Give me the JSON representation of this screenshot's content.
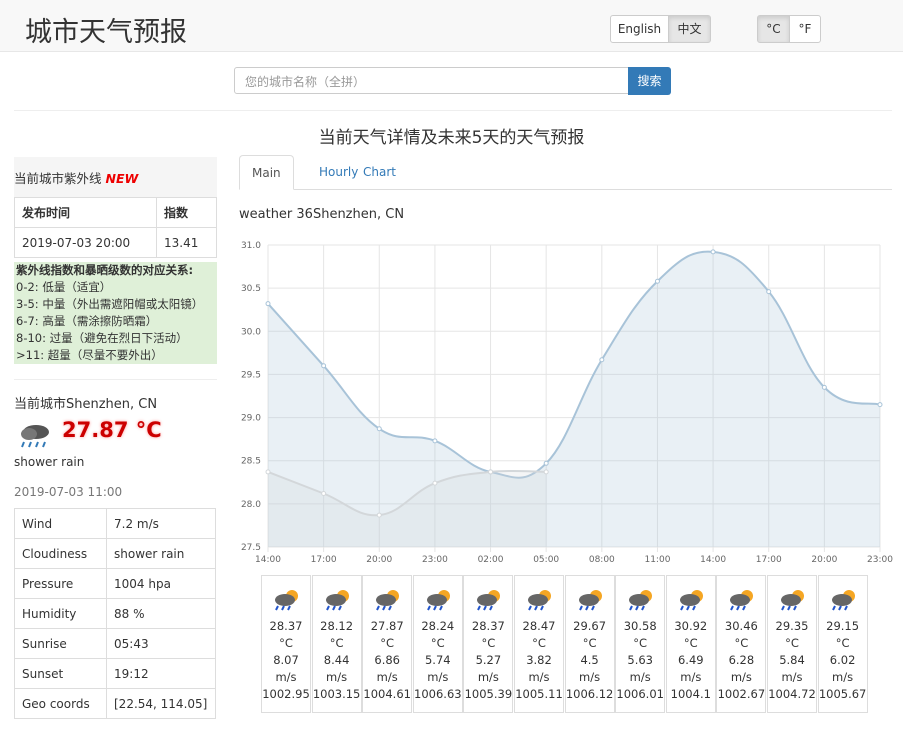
{
  "header": {
    "title": "城市天气预报",
    "lang": [
      "English",
      "中文"
    ],
    "units": [
      "°C",
      "°F"
    ]
  },
  "search": {
    "placeholder": "您的城市名称（全拼）",
    "button": "搜索"
  },
  "heading": "当前天气详情及未来5天的天气预报",
  "uv": {
    "title": "当前城市紫外线",
    "badge": "NEW",
    "columns": [
      "发布时间",
      "指数"
    ],
    "row": [
      "2019-07-03 20:00",
      "13.41"
    ],
    "legend_title": "紫外线指数和暴晒级数的对应关系:",
    "legend": [
      "0-2: 低量（适宜）",
      "3-5: 中量（外出需遮阳帽或太阳镜）",
      "6-7: 高量（需涂擦防晒霜）",
      "8-10: 过量（避免在烈日下活动）",
      ">11: 超量（尽量不要外出）"
    ]
  },
  "current": {
    "city": "当前城市Shenzhen, CN",
    "temp": 27.87,
    "temp_unit": "°C",
    "desc": "shower rain",
    "time": "2019-07-03 11:00",
    "stats": [
      [
        "Wind",
        "7.2 m/s"
      ],
      [
        "Cloudiness",
        "shower rain"
      ],
      [
        "Pressure",
        "1004 hpa"
      ],
      [
        "Humidity",
        "88 %"
      ],
      [
        "Sunrise",
        "05:43"
      ],
      [
        "Sunset",
        "19:12"
      ],
      [
        "Geo coords",
        "[22.54, 114.05]"
      ]
    ]
  },
  "tabs": [
    "Main",
    "Hourly",
    "Chart"
  ],
  "weather_title": "weather 36Shenzhen, CN",
  "chart_data": {
    "type": "line",
    "categories": [
      "14:00",
      "17:00",
      "20:00",
      "23:00",
      "02:00",
      "05:00",
      "08:00",
      "11:00",
      "14:00",
      "17:00",
      "20:00",
      "23:00"
    ],
    "series": [
      {
        "color": "#a8c3d8",
        "values": [
          30.32,
          29.6,
          28.87,
          28.73,
          28.37,
          28.47,
          29.67,
          30.58,
          30.92,
          30.46,
          29.35,
          29.15
        ]
      },
      {
        "color": "#d3d7da",
        "values": [
          28.37,
          28.12,
          27.87,
          28.24,
          28.37,
          28.37,
          null,
          null,
          null,
          null,
          null,
          null
        ]
      }
    ],
    "ylim": [
      27.5,
      31.0
    ],
    "yticks": [
      27.5,
      {
        "value": 28,
        "label": "28.0"
      },
      28.5,
      {
        "value": 29,
        "label": "29.0"
      },
      29.5,
      {
        "value": 30,
        "label": "30.0"
      },
      30.5,
      {
        "value": 31,
        "label": "31.0"
      }
    ],
    "grid": true
  },
  "forecast": {
    "temp_unit": "°C",
    "wind_unit": "m/s",
    "items": [
      {
        "temp": 28.37,
        "wind": 8.07,
        "pressure": 1002.95
      },
      {
        "temp": 28.12,
        "wind": 8.44,
        "pressure": 1003.15
      },
      {
        "temp": 27.87,
        "wind": 6.86,
        "pressure": 1004.61
      },
      {
        "temp": 28.24,
        "wind": 5.74,
        "pressure": 1006.63
      },
      {
        "temp": 28.37,
        "wind": 5.27,
        "pressure": 1005.39
      },
      {
        "temp": 28.47,
        "wind": 3.82,
        "pressure": 1005.11
      },
      {
        "temp": 29.67,
        "wind": 4.5,
        "pressure": 1006.12
      },
      {
        "temp": 30.58,
        "wind": 5.63,
        "pressure": 1006.01
      },
      {
        "temp": 30.92,
        "wind": 6.49,
        "pressure": 1004.1
      },
      {
        "temp": 30.46,
        "wind": 6.28,
        "pressure": 1002.67
      },
      {
        "temp": 29.35,
        "wind": 5.84,
        "pressure": 1004.72
      },
      {
        "temp": 29.15,
        "wind": 6.02,
        "pressure": 1005.67
      }
    ]
  }
}
